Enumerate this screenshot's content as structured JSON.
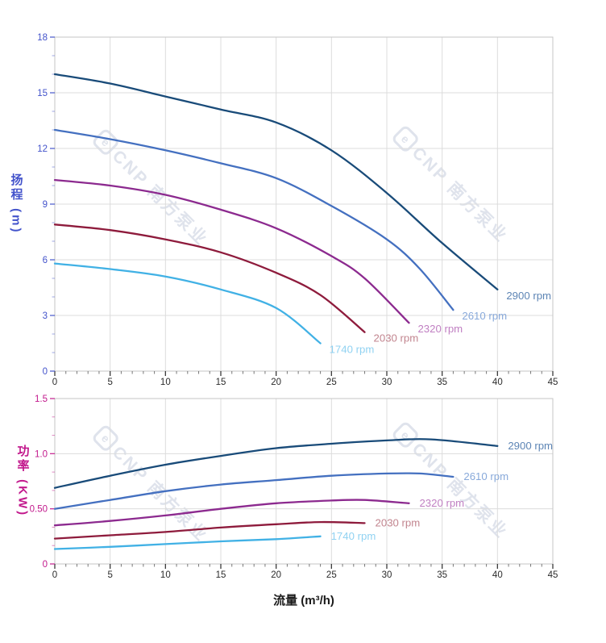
{
  "watermark": {
    "text": "CNP 南方泵业",
    "logo": "e",
    "color": "#dfe3ec"
  },
  "x_axis_title": "流量 (m³/h)",
  "chart_data": [
    {
      "type": "line",
      "name": "head-vs-flow",
      "y_title": "扬程 (m)",
      "axis_color": "#4353cb",
      "x_min": 0,
      "x_max": 45,
      "x_major_step": 5,
      "x_minor_step": 1,
      "x_tick_labels": [
        "0",
        "5",
        "10",
        "15",
        "20",
        "25",
        "30",
        "35",
        "40",
        "45"
      ],
      "y_min": 0,
      "y_max": 18,
      "y_major_step": 3,
      "y_minors_per_major": 2,
      "y_tick_labels": [
        "0",
        "3",
        "6",
        "9",
        "12",
        "15",
        "18"
      ],
      "grid": true,
      "legend_position": "curve-end-labels",
      "series": [
        {
          "name": "2900 rpm",
          "color": "#194b79",
          "label_color": "#5d85b5",
          "points": [
            [
              0,
              16.0
            ],
            [
              5,
              15.5
            ],
            [
              10,
              14.8
            ],
            [
              15,
              14.1
            ],
            [
              20,
              13.4
            ],
            [
              25,
              11.9
            ],
            [
              30,
              9.6
            ],
            [
              35,
              6.9
            ],
            [
              40,
              4.4
            ]
          ]
        },
        {
          "name": "2610 rpm",
          "color": "#4470c0",
          "label_color": "#88a9da",
          "points": [
            [
              0,
              13.0
            ],
            [
              5,
              12.5
            ],
            [
              10,
              11.9
            ],
            [
              15,
              11.2
            ],
            [
              20,
              10.4
            ],
            [
              25,
              8.9
            ],
            [
              30,
              7.1
            ],
            [
              33,
              5.5
            ],
            [
              36,
              3.3
            ]
          ]
        },
        {
          "name": "2320 rpm",
          "color": "#8c2a8f",
          "label_color": "#c07fc2",
          "points": [
            [
              0,
              10.3
            ],
            [
              5,
              10.0
            ],
            [
              10,
              9.5
            ],
            [
              15,
              8.7
            ],
            [
              20,
              7.7
            ],
            [
              25,
              6.2
            ],
            [
              28,
              5.0
            ],
            [
              32,
              2.6
            ]
          ]
        },
        {
          "name": "2030 rpm",
          "color": "#8e1b3c",
          "label_color": "#c2858f",
          "points": [
            [
              0,
              7.9
            ],
            [
              5,
              7.6
            ],
            [
              10,
              7.1
            ],
            [
              15,
              6.4
            ],
            [
              20,
              5.3
            ],
            [
              24,
              4.1
            ],
            [
              28,
              2.1
            ]
          ]
        },
        {
          "name": "1740 rpm",
          "color": "#41b1e5",
          "label_color": "#90d2f2",
          "points": [
            [
              0,
              5.8
            ],
            [
              5,
              5.5
            ],
            [
              10,
              5.1
            ],
            [
              15,
              4.4
            ],
            [
              20,
              3.4
            ],
            [
              24,
              1.5
            ]
          ]
        }
      ]
    },
    {
      "type": "line",
      "name": "power-vs-flow",
      "y_title": "功率 (KW)",
      "axis_color": "#c2188c",
      "x_min": 0,
      "x_max": 45,
      "x_major_step": 5,
      "x_minor_step": 1,
      "x_tick_labels": [
        "0",
        "5",
        "10",
        "15",
        "20",
        "25",
        "30",
        "35",
        "40",
        "45"
      ],
      "y_min": 0,
      "y_max": 1.5,
      "y_major_step": 0.5,
      "y_minors_per_major": 2,
      "y_tick_labels": [
        "0",
        "0.50",
        "1.0",
        "1.5"
      ],
      "grid": true,
      "legend_position": "curve-end-labels",
      "series": [
        {
          "name": "2900 rpm",
          "color": "#194b79",
          "label_color": "#5d85b5",
          "points": [
            [
              0,
              0.69
            ],
            [
              5,
              0.8
            ],
            [
              10,
              0.9
            ],
            [
              15,
              0.98
            ],
            [
              20,
              1.05
            ],
            [
              25,
              1.09
            ],
            [
              30,
              1.12
            ],
            [
              34,
              1.13
            ],
            [
              40,
              1.07
            ]
          ]
        },
        {
          "name": "2610 rpm",
          "color": "#4470c0",
          "label_color": "#88a9da",
          "points": [
            [
              0,
              0.5
            ],
            [
              5,
              0.58
            ],
            [
              10,
              0.66
            ],
            [
              15,
              0.72
            ],
            [
              20,
              0.76
            ],
            [
              25,
              0.8
            ],
            [
              30,
              0.82
            ],
            [
              33,
              0.82
            ],
            [
              36,
              0.79
            ]
          ]
        },
        {
          "name": "2320 rpm",
          "color": "#8c2a8f",
          "label_color": "#c07fc2",
          "points": [
            [
              0,
              0.35
            ],
            [
              5,
              0.39
            ],
            [
              10,
              0.44
            ],
            [
              15,
              0.5
            ],
            [
              20,
              0.55
            ],
            [
              25,
              0.575
            ],
            [
              28,
              0.58
            ],
            [
              32,
              0.55
            ]
          ]
        },
        {
          "name": "2030 rpm",
          "color": "#8e1b3c",
          "label_color": "#c2858f",
          "points": [
            [
              0,
              0.23
            ],
            [
              5,
              0.26
            ],
            [
              10,
              0.29
            ],
            [
              15,
              0.33
            ],
            [
              20,
              0.36
            ],
            [
              24,
              0.38
            ],
            [
              28,
              0.37
            ]
          ]
        },
        {
          "name": "1740 rpm",
          "color": "#41b1e5",
          "label_color": "#90d2f2",
          "points": [
            [
              0,
              0.135
            ],
            [
              5,
              0.155
            ],
            [
              10,
              0.18
            ],
            [
              15,
              0.205
            ],
            [
              20,
              0.225
            ],
            [
              24,
              0.25
            ]
          ]
        }
      ]
    }
  ]
}
